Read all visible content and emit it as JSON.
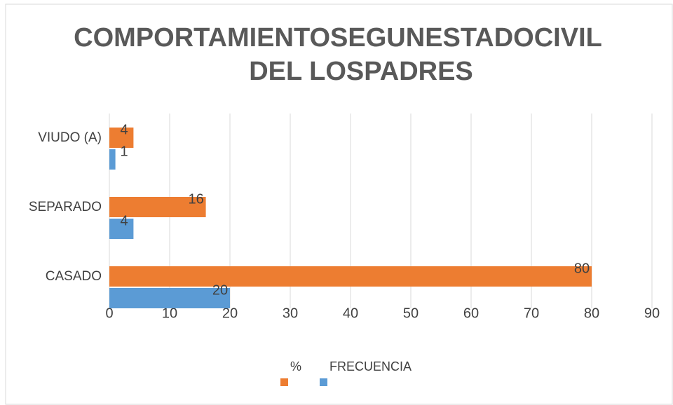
{
  "chart_data": {
    "type": "barh",
    "title": [
      "COMPORTAMIENTOSEGUNESTADOCIVIL",
      "DEL LOSPADRES"
    ],
    "categories": [
      "CASADO",
      "SEPARADO",
      "VIUDO (A)"
    ],
    "series": [
      {
        "name": "%",
        "color": "#ed7d31",
        "values": [
          80,
          16,
          4
        ]
      },
      {
        "name": "FRECUENCIA",
        "color": "#5b9bd5",
        "values": [
          20,
          4,
          1
        ]
      }
    ],
    "xlim": [
      0,
      90
    ],
    "xticks": [
      0,
      10,
      20,
      30,
      40,
      50,
      60,
      70,
      80,
      90
    ],
    "grid": true,
    "legend": "bottom"
  }
}
